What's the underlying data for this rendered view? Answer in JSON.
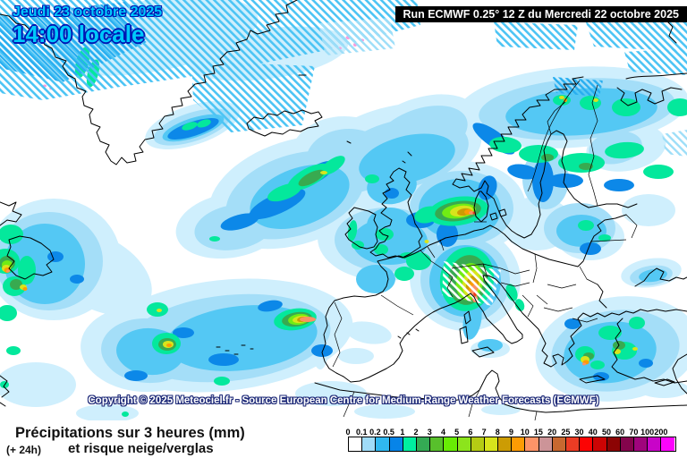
{
  "header": {
    "date_label": "Jeudi 23 octobre 2025",
    "time_label": "14:00 locale",
    "run_label": "Run ECMWF 0.25° 12 Z du Mercredi 22 octobre 2025"
  },
  "map": {
    "copyright": "Copyright © 2025 Meteociel.fr - Source European Centre for Medium-Range Weather Forecasts (ECMWF)"
  },
  "footer": {
    "title": "Précipitations sur 3 heures (mm)",
    "lead_time": "(+ 24h)",
    "subtitle": "et risque neige/verglas"
  },
  "legend": {
    "unit_values": [
      "0",
      "0.1",
      "0.2",
      "0.5",
      "1",
      "2",
      "3",
      "4",
      "5",
      "6",
      "7",
      "8",
      "9",
      "10",
      "15",
      "20",
      "25",
      "30",
      "40",
      "50",
      "60",
      "70",
      "100",
      "200"
    ],
    "colors": [
      "#ffffff",
      "#a0dcf8",
      "#30b8f0",
      "#0784e8",
      "#00f0a0",
      "#34aa54",
      "#58c02c",
      "#68ec04",
      "#8ce41c",
      "#b4cc14",
      "#d8e41c",
      "#cc9c04",
      "#fc9c04",
      "#fc9468",
      "#cc9498",
      "#c86830",
      "#ec3c24",
      "#fc0404",
      "#cc0404",
      "#8c0404",
      "#84044c",
      "#a0047c",
      "#c804c8",
      "#fc04fc"
    ]
  },
  "colors": {
    "date_text": "#00c8fa",
    "date_outline": "#0018b4",
    "run_bar_bg": "#000000",
    "run_bar_text": "#ffffff",
    "copyright_text": "#ffffff",
    "sea": "#ffffff",
    "coastline": "#000000"
  }
}
